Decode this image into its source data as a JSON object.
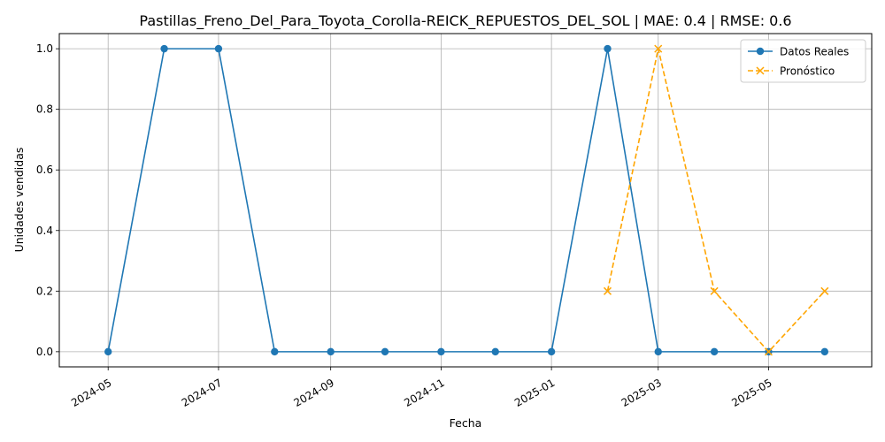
{
  "chart_data": {
    "type": "line",
    "title": "Pastillas_Freno_Del_Para_Toyota_Corolla-REICK_REPUESTOS_DEL_SOL | MAE: 0.4 | RMSE: 0.6",
    "xlabel": "Fecha",
    "ylabel": "Unidades vendidas",
    "xlim": [
      "2024-04-04",
      "2025-06-27"
    ],
    "ylim": [
      -0.05,
      1.05
    ],
    "grid": true,
    "legend_position": "top-right",
    "x_ticks": [
      "2024-05",
      "2024-07",
      "2024-09",
      "2024-11",
      "2025-01",
      "2025-03",
      "2025-05"
    ],
    "x_tick_dates": [
      "2024-05-01",
      "2024-07-01",
      "2024-09-01",
      "2024-11-01",
      "2025-01-01",
      "2025-03-01",
      "2025-05-01"
    ],
    "y_ticks": [
      0.0,
      0.2,
      0.4,
      0.6,
      0.8,
      1.0
    ],
    "y_tick_labels": [
      "0.0",
      "0.2",
      "0.4",
      "0.6",
      "0.8",
      "1.0"
    ],
    "series": [
      {
        "name": "Datos Reales",
        "color": "#1f77b4",
        "style": "solid",
        "marker": "circle",
        "x": [
          "2024-05-01",
          "2024-06-01",
          "2024-07-01",
          "2024-08-01",
          "2024-09-01",
          "2024-10-01",
          "2024-11-01",
          "2024-12-01",
          "2025-01-01",
          "2025-02-01",
          "2025-03-01",
          "2025-04-01",
          "2025-05-01",
          "2025-06-01"
        ],
        "y": [
          0,
          1,
          1,
          0,
          0,
          0,
          0,
          0,
          0,
          1,
          0,
          0,
          0,
          0
        ]
      },
      {
        "name": "Pronóstico",
        "color": "#ffa500",
        "style": "dashed",
        "marker": "x",
        "x": [
          "2025-02-01",
          "2025-03-01",
          "2025-04-01",
          "2025-05-01",
          "2025-06-01"
        ],
        "y": [
          0.2,
          1.0,
          0.2,
          0.0,
          0.2
        ]
      }
    ]
  }
}
